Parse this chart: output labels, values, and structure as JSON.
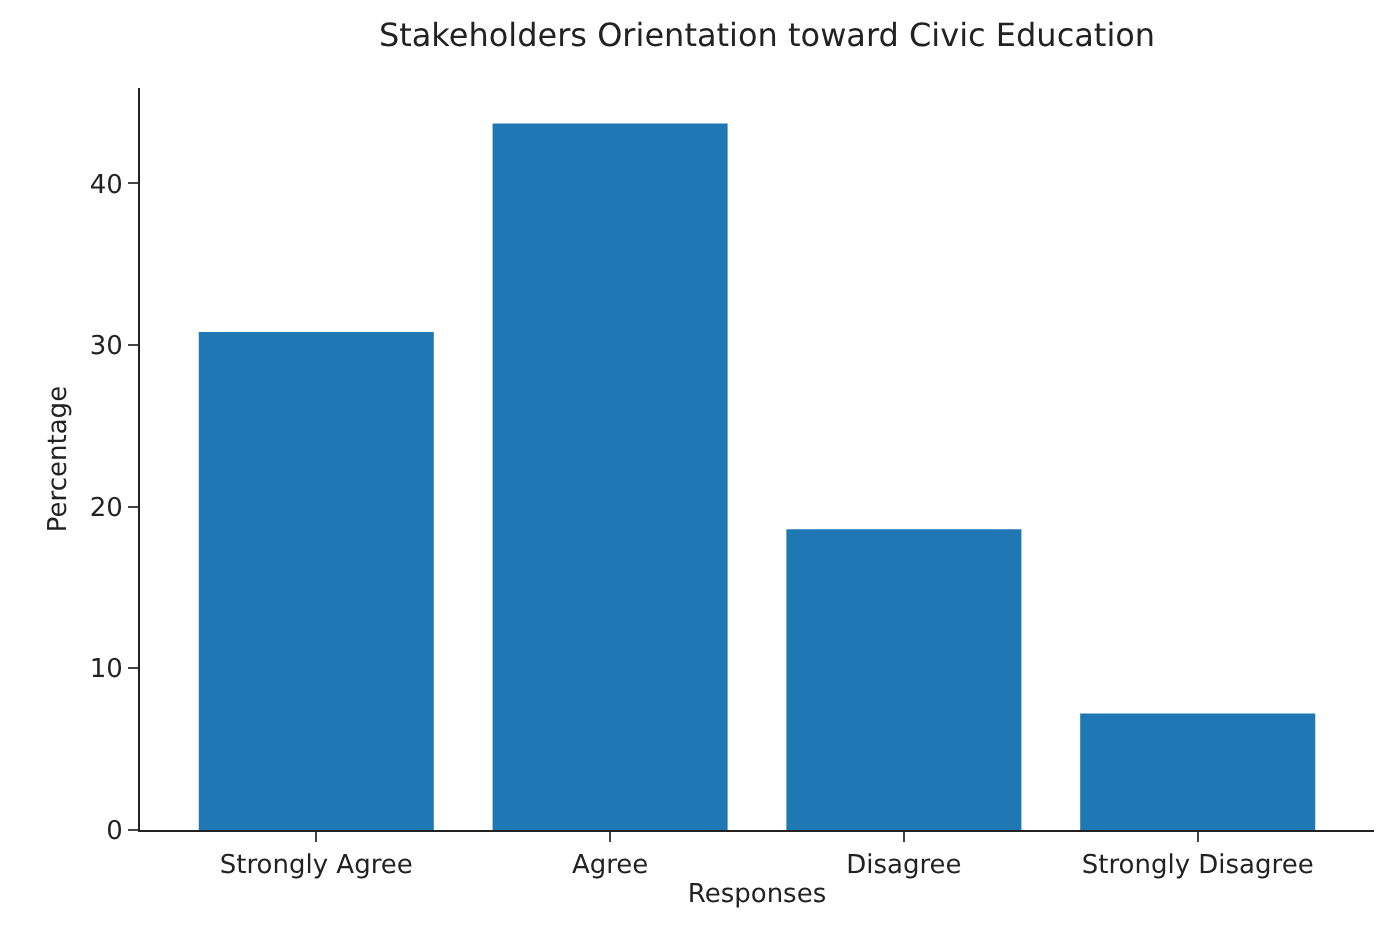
{
  "chart_data": {
    "type": "bar",
    "title": "Stakeholders Orientation toward Civic Education",
    "xlabel": "Responses",
    "ylabel": "Percentage",
    "categories": [
      "Strongly Agree",
      "Agree",
      "Disagree",
      "Strongly Disagree"
    ],
    "values": [
      30.8,
      43.7,
      18.6,
      7.2
    ],
    "color": "#1f77b4",
    "ylim": [
      0,
      45.9
    ],
    "yticks": [
      0,
      10,
      20,
      30,
      40
    ]
  }
}
